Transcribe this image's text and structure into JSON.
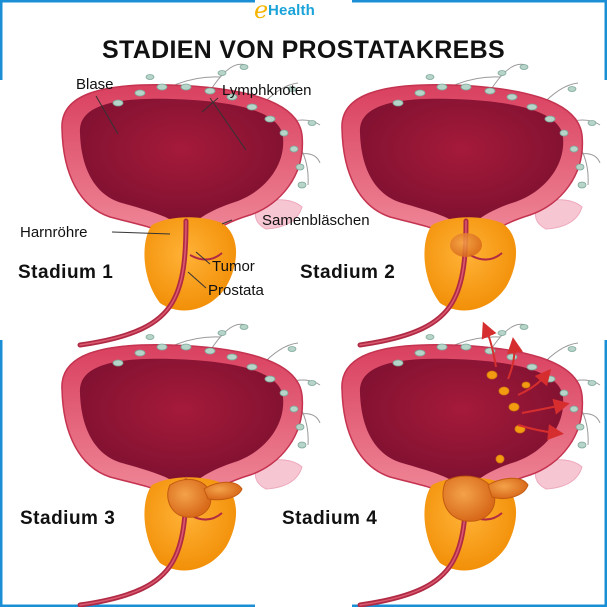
{
  "logo": {
    "letter": "e",
    "text": "Health"
  },
  "title": "STADIEN VON PROSTATAKREBS",
  "labels": {
    "bladder": "Blase",
    "lymph_nodes": "Lymphknoten",
    "urethra": "Harnröhre",
    "seminal_vesicle": "Samenbläschen",
    "tumor": "Tumor",
    "prostate": "Prostata"
  },
  "stages": [
    "Stadium 1",
    "Stadium 2",
    "Stadium 3",
    "Stadium 4"
  ],
  "colors": {
    "bladder_outer": "#e8677d",
    "bladder_inner": "#b5203f",
    "prostate": "#f39c12",
    "tumor": "#e2761b",
    "urethra": "#b12a44",
    "seminal_vesicle": "#f7c6d3",
    "lymph": "#a8cbbf",
    "arrow": "#d62e2e",
    "frame": "#1b8fd6"
  }
}
